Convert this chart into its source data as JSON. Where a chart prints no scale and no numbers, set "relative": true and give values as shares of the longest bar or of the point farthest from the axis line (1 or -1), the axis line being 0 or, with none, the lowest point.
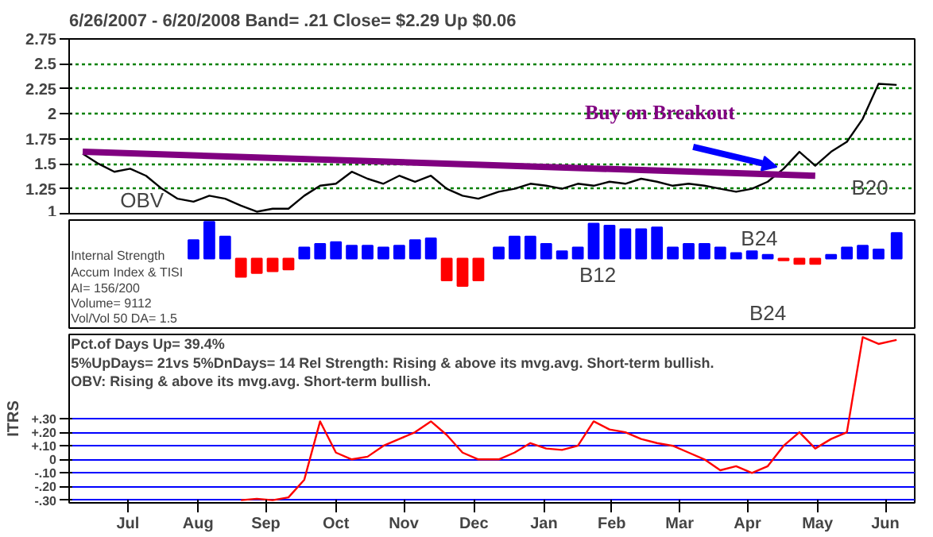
{
  "chart_data": [
    {
      "type": "line",
      "title": "6/26/2007 - 6/20/2008   Band= .21    Close= $2.29    Up $0.06",
      "x": [
        "2007-06-26",
        "2007-07-03",
        "2007-07-10",
        "2007-07-17",
        "2007-07-24",
        "2007-07-31",
        "2007-08-07",
        "2007-08-14",
        "2007-08-21",
        "2007-08-28",
        "2007-09-04",
        "2007-09-11",
        "2007-09-18",
        "2007-09-25",
        "2007-10-02",
        "2007-10-09",
        "2007-10-16",
        "2007-10-23",
        "2007-10-30",
        "2007-11-06",
        "2007-11-13",
        "2007-11-20",
        "2007-11-27",
        "2007-12-04",
        "2007-12-11",
        "2007-12-18",
        "2007-12-27",
        "2008-01-03",
        "2008-01-10",
        "2008-01-17",
        "2008-01-24",
        "2008-01-31",
        "2008-02-07",
        "2008-02-14",
        "2008-02-21",
        "2008-02-28",
        "2008-03-06",
        "2008-03-13",
        "2008-03-20",
        "2008-03-27",
        "2008-04-03",
        "2008-04-10",
        "2008-04-17",
        "2008-04-24",
        "2008-05-01",
        "2008-05-08",
        "2008-05-15",
        "2008-05-22",
        "2008-05-29",
        "2008-06-05",
        "2008-06-12",
        "2008-06-20"
      ],
      "series": [
        {
          "color": "#000000",
          "values": [
            1.6,
            1.5,
            1.42,
            1.45,
            1.38,
            1.25,
            1.15,
            1.12,
            1.18,
            1.15,
            1.08,
            1.02,
            1.05,
            1.05,
            1.18,
            1.28,
            1.3,
            1.42,
            1.35,
            1.3,
            1.38,
            1.32,
            1.38,
            1.25,
            1.18,
            1.15,
            1.22,
            1.25,
            1.3,
            1.28,
            1.25,
            1.3,
            1.28,
            1.32,
            1.3,
            1.35,
            1.32,
            1.28,
            1.3,
            1.28,
            1.25,
            1.22,
            1.25,
            1.32,
            1.45,
            1.62,
            1.48,
            1.62,
            1.72,
            1.95,
            2.3,
            2.29
          ]
        },
        {
          "color": "#800080",
          "x": [
            "2007-06-26",
            "2008-05-15"
          ],
          "values": [
            1.62,
            1.38
          ]
        }
      ],
      "xlim": [
        "2007-06-20",
        "2008-06-28"
      ],
      "ylim": [
        1,
        2.75
      ],
      "yticks": [
        1,
        1.25,
        1.5,
        1.75,
        2,
        2.25,
        2.5,
        2.75
      ],
      "grid": "y",
      "tick_labels": "y",
      "annotations": [
        {
          "text": "Buy on Breakout",
          "x": "2008-05-01",
          "y": 1.45
        },
        "OBV",
        "B20"
      ]
    },
    {
      "type": "bar",
      "relative": true,
      "x": [
        "2007-08-14",
        "2007-08-21",
        "2007-08-28",
        "2007-09-04",
        "2007-09-11",
        "2007-09-18",
        "2007-09-25",
        "2007-10-02",
        "2007-10-09",
        "2007-10-16",
        "2007-10-23",
        "2007-10-30",
        "2007-11-06",
        "2007-11-13",
        "2007-11-20",
        "2007-11-27",
        "2007-12-04",
        "2007-12-11",
        "2007-12-18",
        "2007-12-27",
        "2008-01-03",
        "2008-01-10",
        "2008-01-17",
        "2008-01-24",
        "2008-01-31",
        "2008-02-07",
        "2008-02-14",
        "2008-02-21",
        "2008-02-28",
        "2008-03-06",
        "2008-03-13",
        "2008-03-20",
        "2008-03-27",
        "2008-04-03",
        "2008-04-10",
        "2008-04-17",
        "2008-04-24",
        "2008-05-01",
        "2008-05-08",
        "2008-05-15",
        "2008-05-22",
        "2008-05-29",
        "2008-06-05",
        "2008-06-12",
        "2008-06-20"
      ],
      "values": [
        0.5,
        1.0,
        0.6,
        -0.5,
        -0.4,
        -0.35,
        -0.3,
        0.3,
        0.4,
        0.45,
        0.35,
        0.35,
        0.3,
        0.35,
        0.5,
        0.55,
        -0.6,
        -0.75,
        -0.6,
        0.3,
        0.6,
        0.6,
        0.4,
        0.2,
        0.3,
        0.95,
        0.9,
        0.8,
        0.8,
        0.85,
        0.3,
        0.4,
        0.4,
        0.3,
        0.15,
        0.2,
        0.1,
        -0.05,
        -0.15,
        -0.15,
        0.1,
        0.3,
        0.35,
        0.25,
        0.7
      ],
      "colors": [
        "#0000ff",
        "#0000ff",
        "#0000ff",
        "#ff0000",
        "#ff0000",
        "#ff0000",
        "#ff0000",
        "#0000ff",
        "#0000ff",
        "#0000ff",
        "#0000ff",
        "#0000ff",
        "#0000ff",
        "#0000ff",
        "#0000ff",
        "#0000ff",
        "#ff0000",
        "#ff0000",
        "#ff0000",
        "#0000ff",
        "#0000ff",
        "#0000ff",
        "#0000ff",
        "#0000ff",
        "#0000ff",
        "#0000ff",
        "#0000ff",
        "#0000ff",
        "#0000ff",
        "#0000ff",
        "#0000ff",
        "#0000ff",
        "#0000ff",
        "#0000ff",
        "#0000ff",
        "#0000ff",
        "#0000ff",
        "#ff0000",
        "#ff0000",
        "#ff0000",
        "#0000ff",
        "#0000ff",
        "#0000ff",
        "#0000ff",
        "#0000ff"
      ],
      "xlim": [
        "2007-06-20",
        "2008-06-28"
      ],
      "tick_labels": false,
      "annotations": [
        "Internal Strength",
        "Accum Index & TISI",
        "AI= 156/200",
        "Volume= 9112",
        "Vol/Vol 50 DA= 1.5",
        "B12",
        "B24",
        "B24"
      ]
    },
    {
      "type": "line",
      "ylabel": "ITRS",
      "annotations": [
        "Pct.of Days Up= 39.4%",
        "5%UpDays= 21vs 5%DnDays= 14   Rel Strength: Rising & above its mvg.avg. Short-term bullish.",
        "OBV: Rising & above its mvg.avg. Short-term bullish."
      ],
      "x": [
        "2007-09-04",
        "2007-09-11",
        "2007-09-18",
        "2007-09-25",
        "2007-10-02",
        "2007-10-09",
        "2007-10-16",
        "2007-10-23",
        "2007-10-30",
        "2007-11-06",
        "2007-11-13",
        "2007-11-20",
        "2007-11-27",
        "2007-12-04",
        "2007-12-11",
        "2007-12-18",
        "2007-12-27",
        "2008-01-03",
        "2008-01-10",
        "2008-01-17",
        "2008-01-24",
        "2008-01-31",
        "2008-02-07",
        "2008-02-14",
        "2008-02-21",
        "2008-02-28",
        "2008-03-06",
        "2008-03-13",
        "2008-03-20",
        "2008-03-27",
        "2008-04-03",
        "2008-04-10",
        "2008-04-17",
        "2008-04-24",
        "2008-05-01",
        "2008-05-08",
        "2008-05-15",
        "2008-05-22",
        "2008-05-29",
        "2008-06-05",
        "2008-06-12",
        "2008-06-20"
      ],
      "series": [
        {
          "color": "#ff0000",
          "values": [
            -0.3,
            -0.29,
            -0.3,
            -0.28,
            -0.15,
            0.28,
            0.05,
            0.0,
            0.02,
            0.1,
            0.15,
            0.2,
            0.28,
            0.18,
            0.05,
            0.0,
            0.0,
            0.05,
            0.12,
            0.08,
            0.07,
            0.1,
            0.28,
            0.22,
            0.2,
            0.15,
            0.12,
            0.1,
            0.05,
            0.0,
            -0.08,
            -0.05,
            -0.1,
            -0.05,
            0.1,
            0.2,
            0.08,
            0.15,
            0.2,
            0.9,
            0.85,
            0.88
          ]
        }
      ],
      "xlim": [
        "2007-06-20",
        "2008-06-28"
      ],
      "ylim": [
        -0.32,
        0.92
      ],
      "xticks": [
        {
          "value": "2007-07-16",
          "label": "Jul"
        },
        {
          "value": "2007-08-16",
          "label": "Aug"
        },
        {
          "value": "2007-09-15",
          "label": "Sep"
        },
        {
          "value": "2007-10-16",
          "label": "Oct"
        },
        {
          "value": "2007-11-15",
          "label": "Nov"
        },
        {
          "value": "2007-12-16",
          "label": "Dec"
        },
        {
          "value": "2008-01-16",
          "label": "Jan"
        },
        {
          "value": "2008-02-15",
          "label": "Feb"
        },
        {
          "value": "2008-03-16",
          "label": "Mar"
        },
        {
          "value": "2008-04-15",
          "label": "Apr"
        },
        {
          "value": "2008-05-16",
          "label": "May"
        },
        {
          "value": "2008-06-15",
          "label": "Jun"
        }
      ],
      "yticks": [
        {
          "value": 0.3,
          "label": "+.30"
        },
        {
          "value": 0.2,
          "label": "+.20"
        },
        {
          "value": 0.1,
          "label": "+.10"
        },
        {
          "value": 0,
          "label": "0"
        },
        {
          "value": -0.1,
          "label": "-.10"
        },
        {
          "value": -0.2,
          "label": "-.20"
        },
        {
          "value": -0.3,
          "label": "-.30"
        }
      ],
      "grid": "y"
    }
  ]
}
